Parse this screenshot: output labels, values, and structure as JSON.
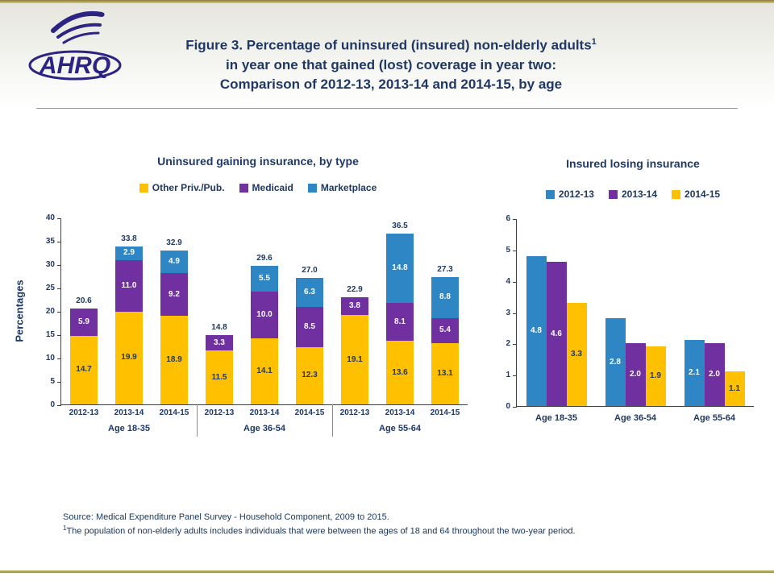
{
  "page": {
    "logo_text": "AHRQ",
    "title_line1": "Figure 3. Percentage of uninsured (insured) non-elderly adults",
    "title_sup": "1",
    "title_line2": "in year one that gained (lost) coverage in year two:",
    "title_line3": "Comparison of 2012-13, 2013-14 and 2014-15, by age",
    "source_line1": "Source:  Medical Expenditure Panel Survey - Household Component, 2009 to 2015.",
    "footnote_sup": "1",
    "footnote_text": "The population of non-elderly adults includes individuals that were between the ages of 18 and 64 throughout the two-year period."
  },
  "colors": {
    "title_navy": "#1f3864",
    "gold": "#ffc000",
    "purple": "#7030a0",
    "blue": "#2e86c4",
    "axis": "#404040",
    "accent_band": "#8a7d3a"
  },
  "chart_data": [
    {
      "type": "bar",
      "subtype": "stacked",
      "title": "Uninsured gaining insurance, by type",
      "ylabel": "Percentages",
      "ylim": [
        0,
        40
      ],
      "ytick_step": 5,
      "grid": false,
      "legend_position": "top",
      "groups": [
        "Age 18-35",
        "Age 36-54",
        "Age 55-64"
      ],
      "categories": [
        "2012-13",
        "2013-14",
        "2014-15"
      ],
      "series": [
        {
          "name": "Other Priv./Pub.",
          "color": "#ffc000",
          "label_color": "#1f3864",
          "values": [
            [
              14.7,
              19.9,
              18.9
            ],
            [
              11.5,
              14.1,
              12.3
            ],
            [
              19.1,
              13.6,
              13.1
            ]
          ]
        },
        {
          "name": "Medicaid",
          "color": "#7030a0",
          "label_color": "#ffffff",
          "values": [
            [
              5.9,
              11.0,
              9.2
            ],
            [
              3.3,
              10.0,
              8.5
            ],
            [
              3.8,
              8.1,
              5.4
            ]
          ]
        },
        {
          "name": "Marketplace",
          "color": "#2e86c4",
          "label_color": "#ffffff",
          "values": [
            [
              0,
              2.9,
              4.9
            ],
            [
              0,
              5.5,
              6.3
            ],
            [
              0,
              14.8,
              8.8
            ]
          ]
        }
      ],
      "totals": [
        [
          20.6,
          33.8,
          32.9
        ],
        [
          14.8,
          29.6,
          27.0
        ],
        [
          22.9,
          36.5,
          27.3
        ]
      ]
    },
    {
      "type": "bar",
      "subtype": "grouped",
      "title": "Insured losing insurance",
      "ylabel": "",
      "ylim": [
        0,
        6
      ],
      "ytick_step": 1,
      "grid": false,
      "legend_position": "top",
      "categories": [
        "Age 18-35",
        "Age 36-54",
        "Age 55-64"
      ],
      "series": [
        {
          "name": "2012-13",
          "color": "#2e86c4",
          "label_color": "#ffffff",
          "values": [
            4.8,
            2.8,
            2.1
          ]
        },
        {
          "name": "2013-14",
          "color": "#7030a0",
          "label_color": "#ffffff",
          "values": [
            4.6,
            2.0,
            2.0
          ]
        },
        {
          "name": "2014-15",
          "color": "#ffc000",
          "label_color": "#1f3864",
          "values": [
            3.3,
            1.9,
            1.1
          ]
        }
      ]
    }
  ]
}
